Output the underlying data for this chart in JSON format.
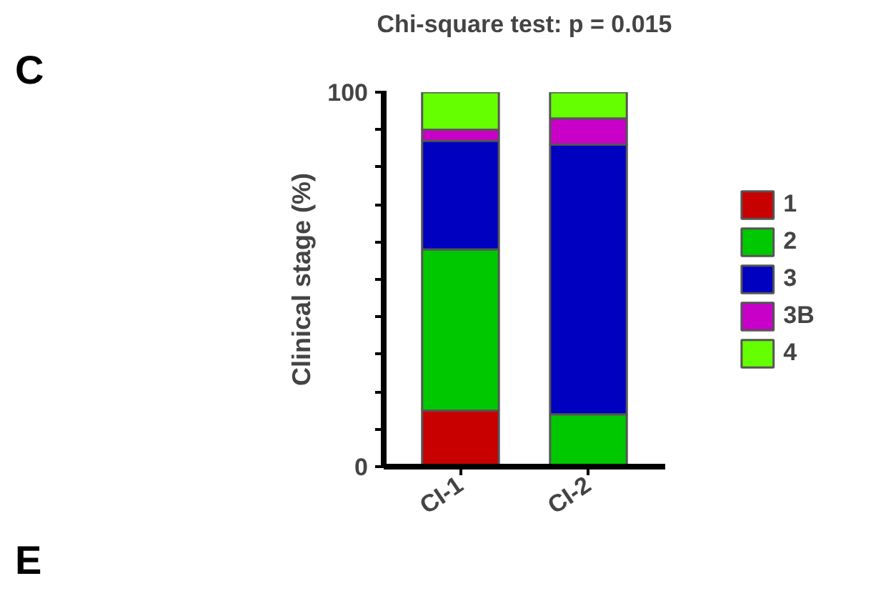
{
  "chart_data": {
    "type": "bar",
    "stacked": true,
    "title": "Chi-square test: p = 0.015",
    "ylabel": "Clinical stage (%)",
    "categories": [
      "CI-1",
      "CI-2"
    ],
    "series": [
      {
        "name": "1",
        "color": "#c80000",
        "values": [
          15,
          0
        ]
      },
      {
        "name": "2",
        "color": "#00c800",
        "values": [
          43,
          14
        ]
      },
      {
        "name": "3",
        "color": "#0000c0",
        "values": [
          29,
          72
        ]
      },
      {
        "name": "3B",
        "color": "#c800c8",
        "values": [
          3,
          7
        ]
      },
      {
        "name": "4",
        "color": "#66ff00",
        "values": [
          10,
          7
        ]
      }
    ],
    "ylim": [
      0,
      100
    ],
    "yticks": [
      0,
      {
        "value": 10,
        "label": null
      },
      {
        "value": 20,
        "label": null
      },
      {
        "value": 30,
        "label": null
      },
      {
        "value": 40,
        "label": null
      },
      {
        "value": 50,
        "label": null
      },
      {
        "value": 60,
        "label": null
      },
      {
        "value": 70,
        "label": null
      },
      {
        "value": 80,
        "label": null
      },
      {
        "value": 90,
        "label": null
      },
      100
    ],
    "grid": false,
    "legend": "right",
    "annotations": [
      "C",
      "E"
    ]
  }
}
